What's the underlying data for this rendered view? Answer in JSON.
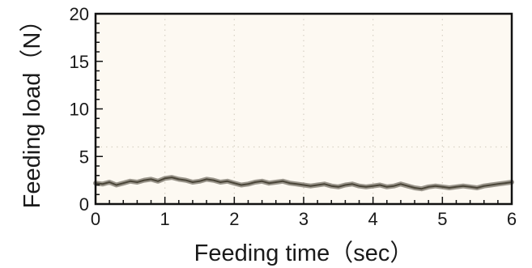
{
  "chart_data": {
    "type": "line",
    "xlabel": "Feeding time（sec）",
    "ylabel": "Feeding load（N）",
    "xlim": [
      0,
      6
    ],
    "ylim": [
      0,
      20
    ],
    "x_ticks": [
      "0",
      "1",
      "2",
      "3",
      "4",
      "5",
      "6"
    ],
    "y_ticks": [
      "0",
      "5",
      "10",
      "15",
      "20"
    ],
    "x_minor_step": 0.2,
    "y_minor_step": 1,
    "grid": "dotted vertical lines at whole seconds, dotted horizontal lines at 6 and 20",
    "grid_y_values": [
      6,
      20
    ],
    "grid_x_values": [
      1,
      2,
      3,
      4,
      5,
      6
    ],
    "colors": {
      "plot_background": "#fdf9f2",
      "trace": "#4a4538",
      "grid": "#d9d3c7",
      "axis": "#111111"
    },
    "series": [
      {
        "x": [
          0,
          0.1,
          0.2,
          0.3,
          0.4,
          0.5,
          0.6,
          0.7,
          0.8,
          0.9,
          1.0,
          1.1,
          1.2,
          1.3,
          1.4,
          1.5,
          1.6,
          1.7,
          1.8,
          1.9,
          2.0,
          2.1,
          2.2,
          2.3,
          2.4,
          2.5,
          2.6,
          2.7,
          2.8,
          2.9,
          3.0,
          3.1,
          3.2,
          3.3,
          3.4,
          3.5,
          3.6,
          3.7,
          3.8,
          3.9,
          4.0,
          4.1,
          4.2,
          4.3,
          4.4,
          4.5,
          4.6,
          4.7,
          4.8,
          4.9,
          5.0,
          5.1,
          5.2,
          5.3,
          5.4,
          5.5,
          5.6,
          5.7,
          5.8,
          5.9,
          6.0
        ],
        "values": [
          2.2,
          2.1,
          2.3,
          2.0,
          2.2,
          2.4,
          2.3,
          2.5,
          2.6,
          2.4,
          2.7,
          2.8,
          2.6,
          2.5,
          2.3,
          2.4,
          2.6,
          2.5,
          2.3,
          2.4,
          2.2,
          2.0,
          2.1,
          2.3,
          2.4,
          2.2,
          2.3,
          2.4,
          2.2,
          2.1,
          2.0,
          1.9,
          2.0,
          2.1,
          1.9,
          1.8,
          2.0,
          2.1,
          1.9,
          1.8,
          1.9,
          2.0,
          1.8,
          1.9,
          2.1,
          1.9,
          1.7,
          1.6,
          1.8,
          1.9,
          1.8,
          1.7,
          1.8,
          1.9,
          1.8,
          1.7,
          1.9,
          2.0,
          2.1,
          2.2,
          2.3
        ]
      }
    ]
  }
}
